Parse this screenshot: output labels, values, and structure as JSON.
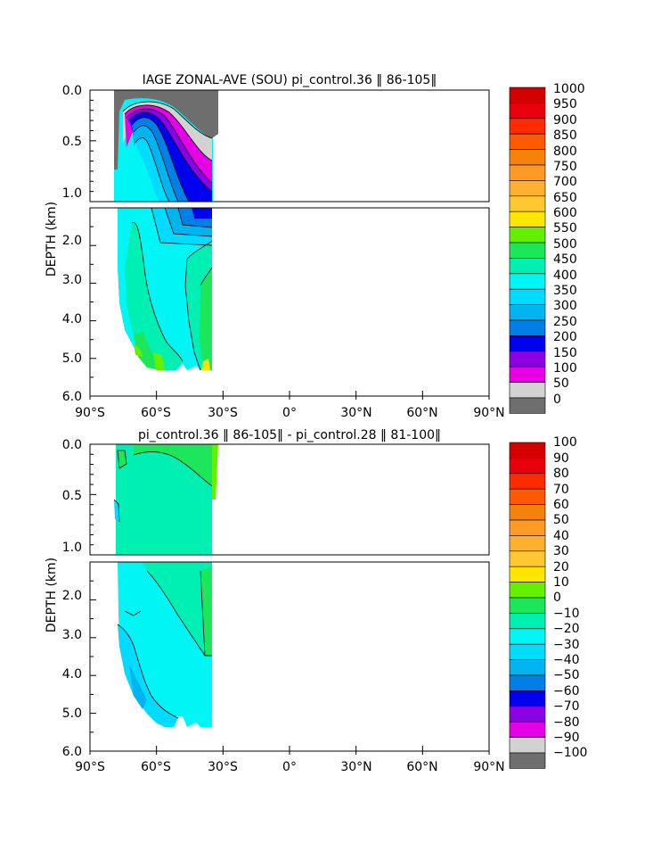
{
  "chart_data": [
    {
      "type": "heatmap",
      "title": "IAGE ZONAL-AVE (SOU) pi_control.36 ‖ 86-105‖",
      "ylabel": "DEPTH (km)",
      "x_ticks": [
        "90°S",
        "60°S",
        "30°S",
        "0°",
        "30°N",
        "60°N",
        "90°N"
      ],
      "y_ticks_upper": [
        "0.0",
        "0.5",
        "1.0"
      ],
      "y_ticks_lower": [
        "2.0",
        "3.0",
        "4.0",
        "5.0",
        "6.0"
      ],
      "xlim": [
        -90,
        90
      ],
      "ylim_km": [
        0,
        6
      ],
      "colorbar_labels": [
        "1000",
        "950",
        "900",
        "850",
        "800",
        "750",
        "700",
        "650",
        "600",
        "550",
        "500",
        "450",
        "400",
        "350",
        "300",
        "250",
        "200",
        "150",
        "100",
        "50",
        "0"
      ],
      "colors": [
        "#d40000",
        "#e8000a",
        "#ff2a00",
        "#ff5a00",
        "#f5820a",
        "#ff9a28",
        "#ffb030",
        "#ffc830",
        "#ffe600",
        "#64f000",
        "#1ee65a",
        "#00f0b4",
        "#00f5f5",
        "#00dcff",
        "#00b4f0",
        "#0080e6",
        "#0000f0",
        "#8c00e6",
        "#e600e6",
        "#d2d2d2",
        "#6e6e6e"
      ],
      "region": {
        "lat_range": [
          -78,
          -35
        ],
        "depth_km": [
          0,
          5.4
        ]
      },
      "values_summary": {
        "surface": "0-150",
        "upper_core_1km": "200-350",
        "deep": "400-550"
      }
    },
    {
      "type": "heatmap",
      "title": "pi_control.36 ‖ 86-105‖ - pi_control.28 ‖ 81-100‖",
      "ylabel": "DEPTH (km)",
      "x_ticks": [
        "90°S",
        "60°S",
        "30°S",
        "0°",
        "30°N",
        "60°N",
        "90°N"
      ],
      "y_ticks_upper": [
        "0.0",
        "0.5",
        "1.0"
      ],
      "y_ticks_lower": [
        "2.0",
        "3.0",
        "4.0",
        "5.0",
        "6.0"
      ],
      "xlim": [
        -90,
        90
      ],
      "ylim_km": [
        0,
        6
      ],
      "colorbar_labels": [
        "100",
        "90",
        "80",
        "70",
        "60",
        "50",
        "40",
        "30",
        "20",
        "10",
        "0",
        "−10",
        "−20",
        "−30",
        "−40",
        "−50",
        "−60",
        "−70",
        "−80",
        "−90",
        "−100"
      ],
      "colors": [
        "#d40000",
        "#e8000a",
        "#ff2a00",
        "#ff5a00",
        "#f5820a",
        "#ff9a28",
        "#ffb030",
        "#ffc830",
        "#ffe600",
        "#64f000",
        "#1ee65a",
        "#00f0b4",
        "#00f5f5",
        "#00dcff",
        "#00b4f0",
        "#0080e6",
        "#0000f0",
        "#8c00e6",
        "#e600e6",
        "#d2d2d2",
        "#6e6e6e"
      ],
      "region": {
        "lat_range": [
          -78,
          -35
        ],
        "depth_km": [
          0,
          5.4
        ]
      },
      "values_summary": {
        "west": "-10 to -30",
        "east": "0 to 10"
      }
    }
  ]
}
